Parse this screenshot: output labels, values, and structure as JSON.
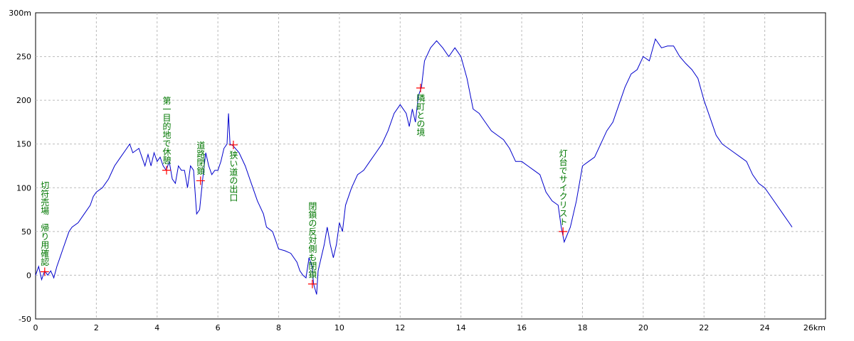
{
  "chart_data": {
    "type": "line",
    "color": "#0000cc",
    "marker_color": "#ff0000",
    "annotation_color": "#007700",
    "grid": true,
    "xlim": [
      0,
      26
    ],
    "ylim": [
      -50,
      300
    ],
    "xticks": [
      0,
      2,
      4,
      6,
      8,
      10,
      12,
      14,
      16,
      18,
      20,
      22,
      24,
      {
        "value": 26,
        "label": "26km"
      }
    ],
    "yticks": [
      -50,
      0,
      50,
      100,
      150,
      200,
      250,
      {
        "value": 300,
        "label": "300m"
      }
    ],
    "x": [
      0,
      0.1,
      0.2,
      0.3,
      0.4,
      0.5,
      0.6,
      0.7,
      0.8,
      0.9,
      1.0,
      1.1,
      1.2,
      1.4,
      1.6,
      1.8,
      1.9,
      2.0,
      2.2,
      2.4,
      2.6,
      2.8,
      3.0,
      3.1,
      3.2,
      3.4,
      3.5,
      3.6,
      3.7,
      3.8,
      3.9,
      4.0,
      4.1,
      4.2,
      4.3,
      4.4,
      4.5,
      4.6,
      4.7,
      4.8,
      4.9,
      5.0,
      5.1,
      5.2,
      5.3,
      5.4,
      5.5,
      5.6,
      5.7,
      5.8,
      5.9,
      6.0,
      6.1,
      6.2,
      6.3,
      6.35,
      6.4,
      6.5,
      6.7,
      6.9,
      7.1,
      7.3,
      7.5,
      7.6,
      7.8,
      7.9,
      8.0,
      8.2,
      8.4,
      8.6,
      8.7,
      8.8,
      8.9,
      9.0,
      9.1,
      9.15,
      9.25,
      9.3,
      9.4,
      9.5,
      9.6,
      9.7,
      9.8,
      9.9,
      10.0,
      10.1,
      10.2,
      10.4,
      10.6,
      10.8,
      11.0,
      11.2,
      11.4,
      11.6,
      11.8,
      12.0,
      12.2,
      12.3,
      12.4,
      12.5,
      12.6,
      12.7,
      12.8,
      13.0,
      13.2,
      13.4,
      13.6,
      13.8,
      14.0,
      14.2,
      14.4,
      14.6,
      14.8,
      15.0,
      15.2,
      15.4,
      15.6,
      15.8,
      16.0,
      16.2,
      16.4,
      16.6,
      16.8,
      17.0,
      17.2,
      17.3,
      17.4,
      17.6,
      17.8,
      18.0,
      18.2,
      18.4,
      18.6,
      18.8,
      19.0,
      19.2,
      19.4,
      19.6,
      19.8,
      20.0,
      20.2,
      20.4,
      20.6,
      20.8,
      21.0,
      21.2,
      21.4,
      21.6,
      21.8,
      22.0,
      22.2,
      22.4,
      22.6,
      22.8,
      23.0,
      23.2,
      23.4,
      23.6,
      23.8,
      24.0,
      24.2,
      24.4,
      24.6,
      24.8,
      24.9
    ],
    "values": [
      0,
      10,
      -5,
      5,
      0,
      5,
      -3,
      10,
      20,
      30,
      40,
      50,
      55,
      60,
      70,
      80,
      90,
      95,
      100,
      110,
      125,
      135,
      145,
      150,
      140,
      145,
      135,
      125,
      138,
      125,
      140,
      130,
      135,
      125,
      120,
      130,
      110,
      105,
      125,
      120,
      120,
      100,
      125,
      120,
      70,
      75,
      110,
      140,
      125,
      115,
      120,
      120,
      130,
      145,
      150,
      185,
      150,
      148,
      140,
      125,
      105,
      85,
      70,
      55,
      50,
      40,
      30,
      28,
      25,
      15,
      5,
      0,
      -3,
      20,
      10,
      -10,
      -22,
      5,
      20,
      35,
      55,
      35,
      20,
      35,
      60,
      50,
      80,
      100,
      115,
      120,
      130,
      140,
      150,
      165,
      185,
      195,
      185,
      170,
      190,
      175,
      205,
      215,
      245,
      260,
      268,
      260,
      250,
      260,
      250,
      225,
      190,
      185,
      175,
      165,
      160,
      155,
      145,
      130,
      130,
      125,
      120,
      115,
      95,
      85,
      80,
      55,
      38,
      55,
      85,
      125,
      130,
      135,
      150,
      165,
      175,
      195,
      215,
      230,
      235,
      250,
      245,
      270,
      260,
      262,
      262,
      250,
      242,
      235,
      225,
      200,
      180,
      160,
      150,
      145,
      140,
      135,
      130,
      115,
      105,
      100,
      90,
      80,
      70,
      60,
      55
    ],
    "annotations": [
      {
        "x": 0.3,
        "y": 4,
        "text": "切符売場　帰り用確認"
      },
      {
        "x": 4.31,
        "y": 120,
        "text": "第一目的地で休憩"
      },
      {
        "x": 5.43,
        "y": 108,
        "text": "道路閉鎖"
      },
      {
        "x": 6.51,
        "y": 149,
        "text": "狭い道の出口"
      },
      {
        "x": 9.11,
        "y": -10,
        "text": "閉鎖の反対側も閉鎖"
      },
      {
        "x": 12.67,
        "y": 214,
        "text": "隣町との境"
      },
      {
        "x": 17.36,
        "y": 50,
        "text": "灯台でサイクリスト"
      }
    ]
  }
}
